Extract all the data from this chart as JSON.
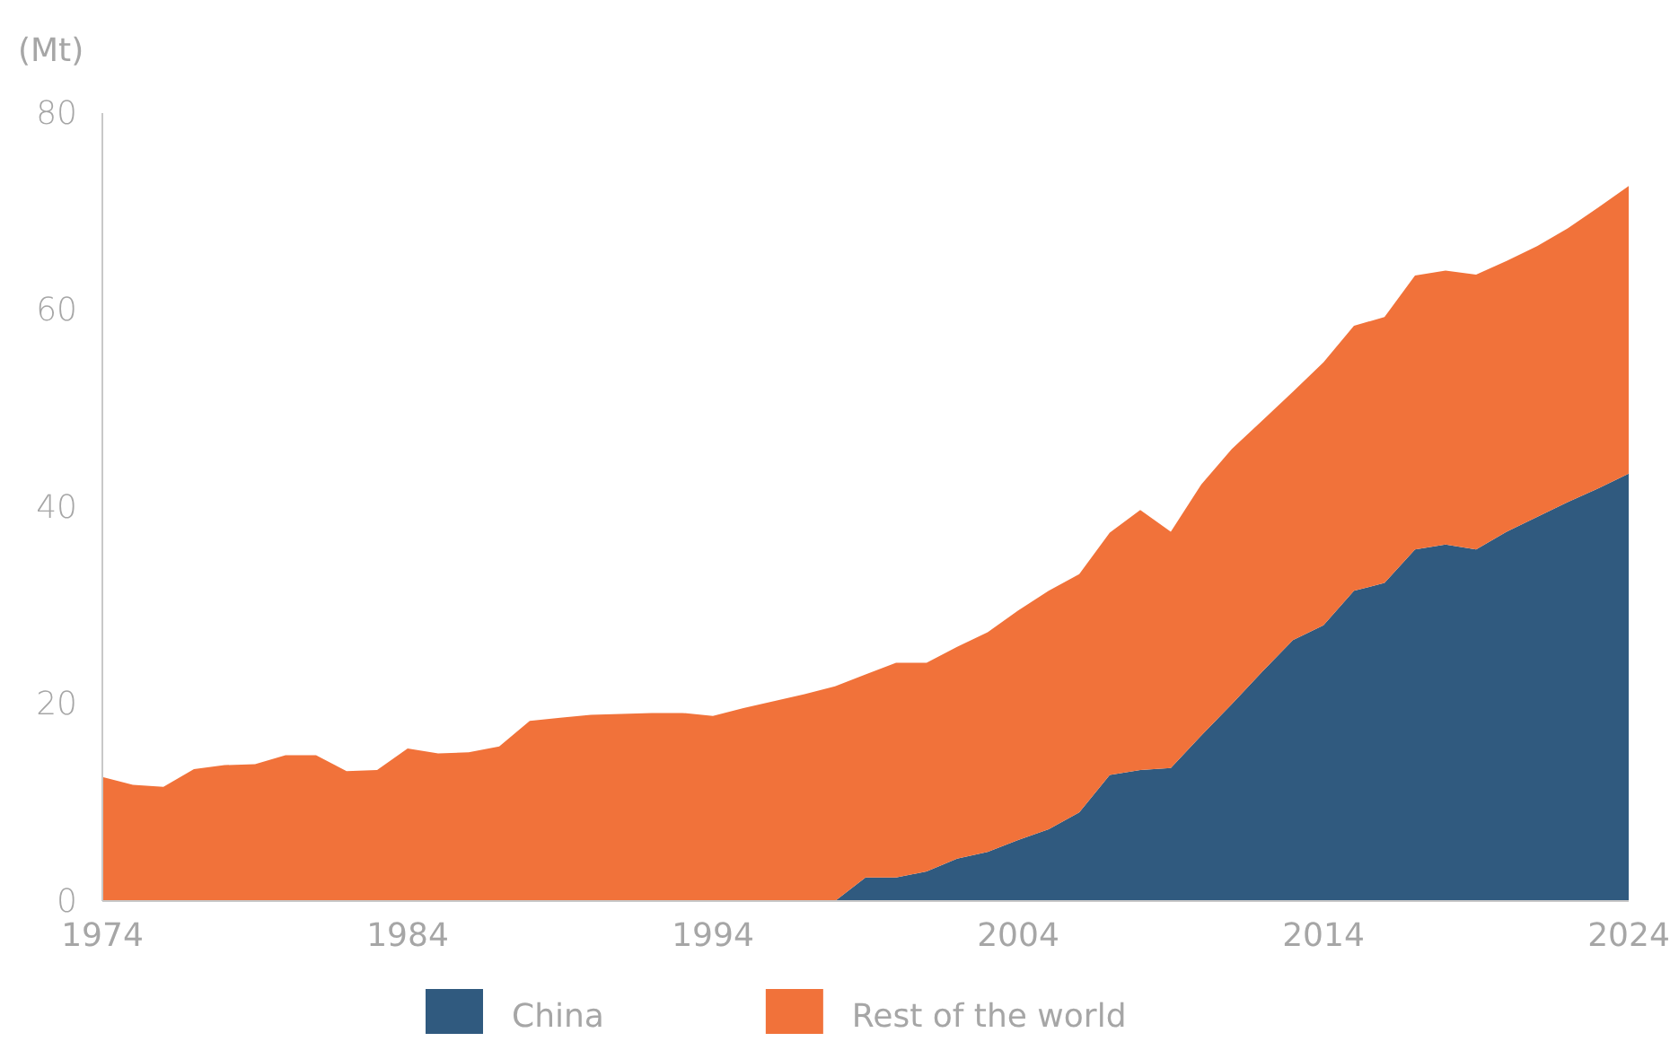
{
  "chart_data": {
    "type": "area",
    "stacked": true,
    "ylabel": "(Mt)",
    "x": [
      1974,
      1975,
      1976,
      1977,
      1978,
      1979,
      1980,
      1981,
      1982,
      1983,
      1984,
      1985,
      1986,
      1987,
      1988,
      1989,
      1990,
      1991,
      1992,
      1993,
      1994,
      1995,
      1996,
      1997,
      1998,
      1999,
      2000,
      2001,
      2002,
      2003,
      2004,
      2005,
      2006,
      2007,
      2008,
      2009,
      2010,
      2011,
      2012,
      2013,
      2014,
      2015,
      2016,
      2017,
      2018,
      2019,
      2020,
      2021,
      2022,
      2023,
      2024
    ],
    "series": [
      {
        "name": "China",
        "color": "#305a7f",
        "values": [
          0,
          0,
          0,
          0,
          0,
          0,
          0,
          0,
          0,
          0,
          0,
          0,
          0,
          0,
          0,
          0,
          0,
          0,
          0,
          0,
          0,
          0,
          0,
          0,
          0,
          2.4,
          2.4,
          3.0,
          4.3,
          5.0,
          6.2,
          7.3,
          9.0,
          12.8,
          13.3,
          13.5,
          16.8,
          20.0,
          23.3,
          26.5,
          28.0,
          31.5,
          32.3,
          35.7,
          36.2,
          35.7,
          37.5,
          39.0,
          40.5,
          41.9,
          43.4
        ]
      },
      {
        "name": "Rest of the world",
        "color": "#f1723a",
        "values": [
          12.6,
          11.8,
          11.6,
          13.4,
          13.8,
          13.9,
          14.8,
          14.8,
          13.2,
          13.3,
          15.5,
          15.0,
          15.1,
          15.7,
          18.3,
          18.6,
          18.9,
          19.0,
          19.1,
          19.1,
          18.8,
          19.6,
          20.3,
          21.0,
          21.8,
          20.6,
          21.8,
          21.2,
          21.5,
          22.3,
          23.3,
          24.2,
          24.2,
          24.6,
          26.4,
          24.0,
          25.5,
          25.9,
          25.5,
          25.2,
          26.7,
          26.9,
          27.0,
          27.8,
          27.8,
          27.9,
          27.5,
          27.5,
          27.8,
          28.5,
          29.2
        ]
      }
    ],
    "xlim": [
      1974,
      2024
    ],
    "xticks": [
      1974,
      1984,
      1994,
      2004,
      2014,
      2024
    ],
    "ylim": [
      0,
      80
    ],
    "yticks": [
      0,
      20,
      40,
      60,
      80
    ],
    "grid": false,
    "legend": "bottom"
  }
}
